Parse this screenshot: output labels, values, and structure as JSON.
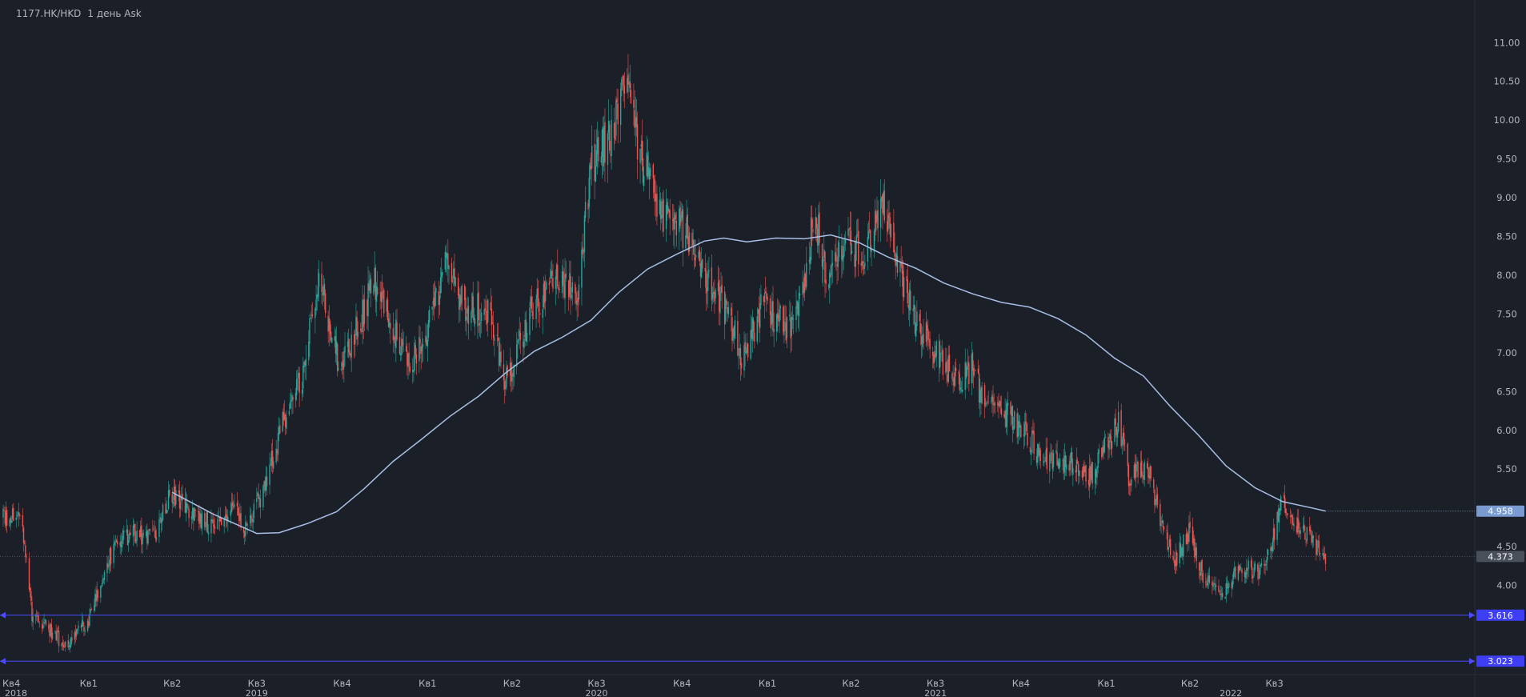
{
  "legend": {
    "symbol": "1177.HK/HKD",
    "interval": "1 день",
    "price_type": "Ask"
  },
  "colors": {
    "background": "#1b1f28",
    "grid": "#232733",
    "text": "#b2b5be",
    "candle_up": "#26a69a",
    "candle_down": "#ef5350",
    "ma": "#a9bfe6",
    "hline": "#4d4dff",
    "axis_sep": "#2a2e39"
  },
  "price_labels": [
    {
      "value": 4.958,
      "text": "4.958",
      "bg": "#7a9bd1",
      "dotted": true
    },
    {
      "value": 4.373,
      "text": "4.373",
      "bg": "#4a4f5c",
      "dotted": true
    },
    {
      "value": 3.616,
      "text": "3.616",
      "bg": "#3e3ef5",
      "dotted": false
    },
    {
      "value": 3.023,
      "text": "3.023",
      "bg": "#3e3ef5",
      "dotted": false
    }
  ],
  "horizontal_lines": [
    3.616,
    3.023
  ],
  "chart_data": {
    "type": "candlestick",
    "ylim": [
      2.85,
      11.55
    ],
    "y_ticks": [
      "4.00",
      "4.50",
      "5.50",
      "6.00",
      "6.50",
      "7.00",
      "7.50",
      "8.00",
      "8.50",
      "9.00",
      "9.50",
      "10.00",
      "10.50",
      "11.00"
    ],
    "x_range": [
      "2018-10-01",
      "2022-12-31"
    ],
    "x_quarter_labels": [
      {
        "date": "2018-10-01",
        "label": "Кв4"
      },
      {
        "date": "2019-01-01",
        "label": "Кв1"
      },
      {
        "date": "2019-04-01",
        "label": "Кв2"
      },
      {
        "date": "2019-07-01",
        "label": "Кв3"
      },
      {
        "date": "2019-10-01",
        "label": "Кв4"
      },
      {
        "date": "2020-01-01",
        "label": "Кв1"
      },
      {
        "date": "2020-04-01",
        "label": "Кв2"
      },
      {
        "date": "2020-07-01",
        "label": "Кв3"
      },
      {
        "date": "2020-10-01",
        "label": "Кв4"
      },
      {
        "date": "2021-01-01",
        "label": "Кв1"
      },
      {
        "date": "2021-04-01",
        "label": "Кв2"
      },
      {
        "date": "2021-07-01",
        "label": "Кв3"
      },
      {
        "date": "2021-10-01",
        "label": "Кв4"
      },
      {
        "date": "2022-01-01",
        "label": "Кв1"
      },
      {
        "date": "2022-04-01",
        "label": "Кв2"
      },
      {
        "date": "2022-07-01",
        "label": "Кв3"
      }
    ],
    "x_year_labels": [
      {
        "date": "2018-10-01",
        "label": "2018"
      },
      {
        "date": "2019-07-01",
        "label": "2019"
      },
      {
        "date": "2020-07-01",
        "label": "2020"
      },
      {
        "date": "2021-07-01",
        "label": "2021"
      },
      {
        "date": "2022-05-15",
        "label": "2022"
      }
    ],
    "price_path": [
      [
        "2018-10-01",
        4.9
      ],
      [
        "2018-10-20",
        4.88
      ],
      [
        "2018-11-01",
        3.62
      ],
      [
        "2018-11-20",
        3.42
      ],
      [
        "2018-12-10",
        3.2
      ],
      [
        "2019-01-03",
        3.62
      ],
      [
        "2019-01-20",
        4.3
      ],
      [
        "2019-02-15",
        4.7
      ],
      [
        "2019-03-10",
        4.6
      ],
      [
        "2019-04-01",
        5.2
      ],
      [
        "2019-04-25",
        4.9
      ],
      [
        "2019-05-20",
        4.75
      ],
      [
        "2019-06-05",
        5.1
      ],
      [
        "2019-06-20",
        4.7
      ],
      [
        "2019-07-10",
        5.3
      ],
      [
        "2019-08-01",
        6.2
      ],
      [
        "2019-08-20",
        6.7
      ],
      [
        "2019-09-05",
        8.0
      ],
      [
        "2019-09-20",
        7.1
      ],
      [
        "2019-10-01",
        6.8
      ],
      [
        "2019-10-20",
        7.4
      ],
      [
        "2019-11-05",
        7.9
      ],
      [
        "2019-11-25",
        7.3
      ],
      [
        "2019-12-15",
        6.9
      ],
      [
        "2020-01-01",
        7.3
      ],
      [
        "2020-01-20",
        8.1
      ],
      [
        "2020-02-10",
        7.6
      ],
      [
        "2020-03-10",
        7.5
      ],
      [
        "2020-03-25",
        6.6
      ],
      [
        "2020-04-20",
        7.5
      ],
      [
        "2020-05-20",
        8.0
      ],
      [
        "2020-06-10",
        7.7
      ],
      [
        "2020-06-25",
        9.4
      ],
      [
        "2020-07-20",
        9.9
      ],
      [
        "2020-08-01",
        10.5
      ],
      [
        "2020-08-15",
        9.6
      ],
      [
        "2020-09-10",
        8.8
      ],
      [
        "2020-10-10",
        8.5
      ],
      [
        "2020-10-25",
        8.0
      ],
      [
        "2020-11-20",
        7.5
      ],
      [
        "2020-12-05",
        6.9
      ],
      [
        "2020-12-25",
        7.6
      ],
      [
        "2021-01-25",
        7.3
      ],
      [
        "2021-02-10",
        7.8
      ],
      [
        "2021-02-20",
        8.9
      ],
      [
        "2021-03-05",
        8.0
      ],
      [
        "2021-03-25",
        8.4
      ],
      [
        "2021-04-15",
        8.3
      ],
      [
        "2021-05-05",
        8.9
      ],
      [
        "2021-05-20",
        8.2
      ],
      [
        "2021-06-10",
        7.4
      ],
      [
        "2021-07-01",
        7.0
      ],
      [
        "2021-07-25",
        6.6
      ],
      [
        "2021-08-10",
        6.8
      ],
      [
        "2021-08-20",
        6.4
      ],
      [
        "2021-09-15",
        6.2
      ],
      [
        "2021-10-05",
        6.0
      ],
      [
        "2021-10-25",
        5.6
      ],
      [
        "2021-11-20",
        5.6
      ],
      [
        "2021-12-15",
        5.4
      ],
      [
        "2022-01-01",
        5.8
      ],
      [
        "2022-01-15",
        6.1
      ],
      [
        "2022-01-25",
        5.4
      ],
      [
        "2022-02-15",
        5.5
      ],
      [
        "2022-03-01",
        4.8
      ],
      [
        "2022-03-15",
        4.3
      ],
      [
        "2022-04-01",
        4.7
      ],
      [
        "2022-04-15",
        4.1
      ],
      [
        "2022-05-05",
        3.9
      ],
      [
        "2022-05-25",
        4.2
      ],
      [
        "2022-06-20",
        4.2
      ],
      [
        "2022-07-10",
        5.1
      ],
      [
        "2022-07-25",
        4.8
      ],
      [
        "2022-08-10",
        4.55
      ],
      [
        "2022-08-25",
        4.37
      ]
    ],
    "moving_average": [
      [
        "2019-04-01",
        5.2
      ],
      [
        "2019-05-15",
        4.92
      ],
      [
        "2019-06-20",
        4.73
      ],
      [
        "2019-07-01",
        4.67
      ],
      [
        "2019-07-25",
        4.68
      ],
      [
        "2019-08-25",
        4.8
      ],
      [
        "2019-09-25",
        4.95
      ],
      [
        "2019-10-25",
        5.25
      ],
      [
        "2019-11-25",
        5.6
      ],
      [
        "2019-12-25",
        5.88
      ],
      [
        "2020-01-25",
        6.18
      ],
      [
        "2020-02-25",
        6.44
      ],
      [
        "2020-03-25",
        6.74
      ],
      [
        "2020-04-25",
        7.02
      ],
      [
        "2020-05-25",
        7.2
      ],
      [
        "2020-06-25",
        7.42
      ],
      [
        "2020-07-25",
        7.78
      ],
      [
        "2020-08-25",
        8.08
      ],
      [
        "2020-09-25",
        8.27
      ],
      [
        "2020-10-25",
        8.44
      ],
      [
        "2020-11-15",
        8.48
      ],
      [
        "2020-12-10",
        8.43
      ],
      [
        "2021-01-10",
        8.48
      ],
      [
        "2021-02-10",
        8.47
      ],
      [
        "2021-03-10",
        8.52
      ],
      [
        "2021-04-10",
        8.42
      ],
      [
        "2021-05-10",
        8.24
      ],
      [
        "2021-06-10",
        8.09
      ],
      [
        "2021-07-10",
        7.9
      ],
      [
        "2021-08-10",
        7.76
      ],
      [
        "2021-09-10",
        7.65
      ],
      [
        "2021-10-10",
        7.59
      ],
      [
        "2021-11-10",
        7.44
      ],
      [
        "2021-12-10",
        7.23
      ],
      [
        "2022-01-10",
        6.93
      ],
      [
        "2022-02-10",
        6.7
      ],
      [
        "2022-03-10",
        6.32
      ],
      [
        "2022-04-10",
        5.94
      ],
      [
        "2022-05-10",
        5.54
      ],
      [
        "2022-06-10",
        5.26
      ],
      [
        "2022-07-10",
        5.08
      ],
      [
        "2022-08-10",
        5.0
      ],
      [
        "2022-08-25",
        4.958
      ]
    ]
  }
}
